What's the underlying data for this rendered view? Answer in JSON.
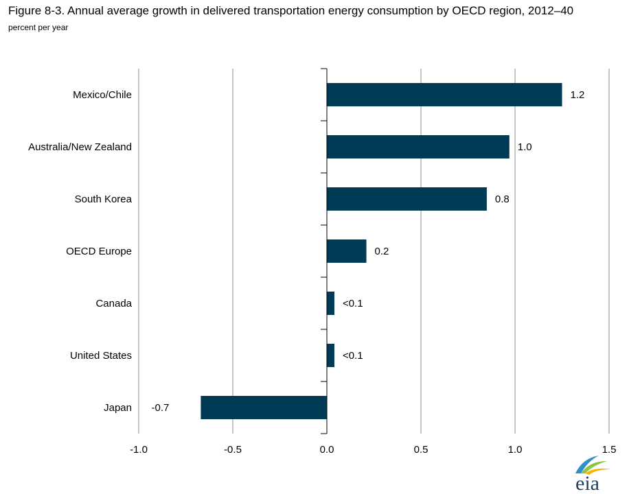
{
  "title": "Figure 8-3. Annual average growth in delivered transportation energy consumption by OECD region, 2012–40",
  "subtitle": "percent per year",
  "logo": {
    "text": "eia"
  },
  "colors": {
    "bar": "#003A54",
    "grid": "#8c8c8c",
    "axis": "#000000"
  },
  "chart_data": {
    "type": "bar",
    "orientation": "horizontal",
    "categories": [
      "Mexico/Chile",
      "Australia/New Zealand",
      "South Korea",
      "OECD Europe",
      "Canada",
      "United States",
      "Japan"
    ],
    "values": [
      1.25,
      0.97,
      0.85,
      0.21,
      0.04,
      0.04,
      -0.67
    ],
    "data_labels": [
      "1.2",
      "1.0",
      "0.8",
      "0.2",
      "<0.1",
      "<0.1",
      "-0.7"
    ],
    "xlim": [
      -1.0,
      1.5
    ],
    "xticks": [
      -1.0,
      -0.5,
      0.0,
      0.5,
      1.0,
      1.5
    ],
    "xtick_labels": [
      "-1.0",
      "-0.5",
      "0.0",
      "0.5",
      "1.0",
      "1.5"
    ],
    "grid": true,
    "legend": "none"
  }
}
